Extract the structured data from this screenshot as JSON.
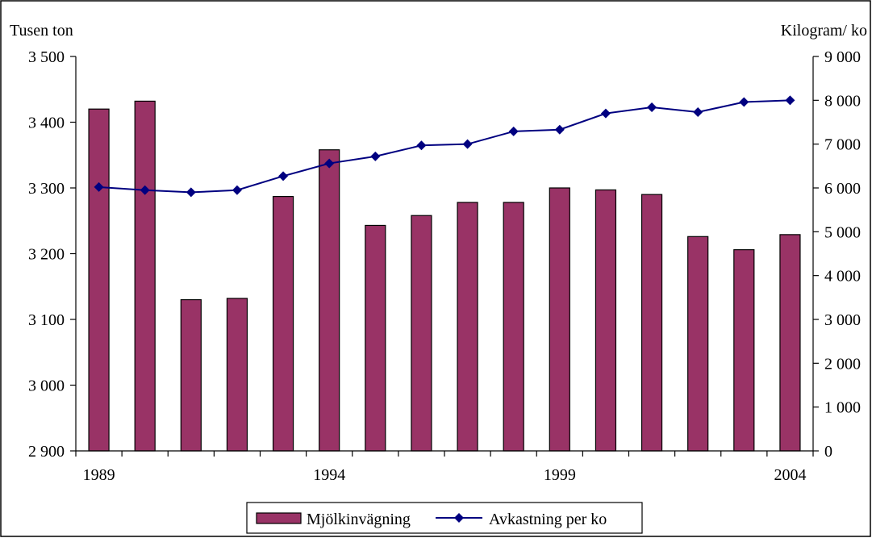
{
  "chart_data": {
    "type": "bar",
    "title": "",
    "y_left_label": "Tusen ton",
    "y_right_label": "Kilogram/ ko",
    "x": [
      1989,
      1990,
      1991,
      1992,
      1993,
      1994,
      1995,
      1996,
      1997,
      1998,
      1999,
      2000,
      2001,
      2002,
      2003,
      2004
    ],
    "x_tick_labels": [
      "1989",
      "1994",
      "1999",
      "2004"
    ],
    "x_tick_years": [
      1989,
      1994,
      1999,
      2004
    ],
    "y_left_range": [
      2900,
      3500
    ],
    "y_left_ticks": [
      2900,
      3000,
      3100,
      3200,
      3300,
      3400,
      3500
    ],
    "y_left_tick_labels": [
      "2 900",
      "3 000",
      "3 100",
      "3 200",
      "3 300",
      "3 400",
      "3 500"
    ],
    "y_right_range": [
      0,
      9000
    ],
    "y_right_ticks": [
      0,
      1000,
      2000,
      3000,
      4000,
      5000,
      6000,
      7000,
      8000,
      9000
    ],
    "y_right_tick_labels": [
      "0",
      "1 000",
      "2 000",
      "3 000",
      "4 000",
      "5 000",
      "6 000",
      "7 000",
      "8 000",
      "9 000"
    ],
    "grid": false,
    "legend_position": "bottom",
    "series": [
      {
        "name": "Mjölkinvägning",
        "type": "bar",
        "axis": "left",
        "color": "#993366",
        "values": [
          3420,
          3432,
          3130,
          3132,
          3287,
          3358,
          3243,
          3258,
          3278,
          3278,
          3300,
          3297,
          3290,
          3226,
          3206,
          3229
        ]
      },
      {
        "name": "Avkastning per ko",
        "type": "line",
        "axis": "right",
        "color": "#000080",
        "values": [
          6020,
          5950,
          5900,
          5950,
          6270,
          6560,
          6720,
          6970,
          7000,
          7290,
          7330,
          7700,
          7840,
          7730,
          7960,
          8000
        ]
      }
    ]
  }
}
